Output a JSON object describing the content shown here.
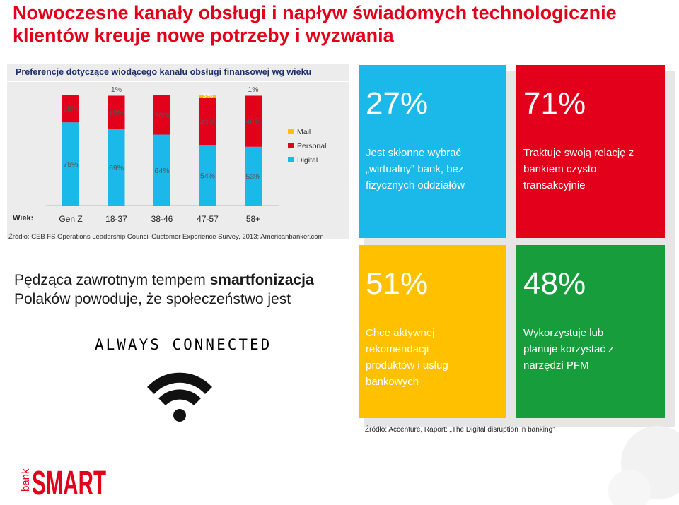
{
  "title": "Nowoczesne kanały obsługi i napływ świadomych technologicznie klientów kreuje nowe potrzeby i wyzwania",
  "chart_heading": "Preferencje dotyczące wiodącego kanału obsługi finansowej wg wieku",
  "chart_data": {
    "type": "bar",
    "stacked": true,
    "categories": [
      "Gen Z",
      "18-37",
      "38-46",
      "47-57",
      "58+"
    ],
    "axis_label": "Wiek:",
    "series": [
      {
        "name": "Digital",
        "color": "#1bb8ea",
        "values": [
          75,
          69,
          64,
          54,
          53
        ],
        "labels": [
          "75%",
          "69%",
          "64%",
          "54%",
          "53%"
        ]
      },
      {
        "name": "Personal",
        "color": "#e2001a",
        "values": [
          25,
          30,
          36,
          43,
          46
        ],
        "labels": [
          "25%",
          "30%",
          "36%",
          "43%",
          "46%"
        ]
      },
      {
        "name": "Mail",
        "color": "#ffc000",
        "values": [
          0,
          1,
          0,
          3,
          1
        ],
        "labels": [
          "",
          "1%",
          "",
          "3%",
          "1%"
        ]
      }
    ],
    "legend_order": [
      "Mail",
      "Personal",
      "Digital"
    ],
    "legend_position": "right",
    "ylim": [
      0,
      100
    ]
  },
  "source1": "Źródło: CEB FS Operations Leadership Council Customer Experience Survey, 2013; Americanbanker.com",
  "tiles": {
    "blue": {
      "pct": "27%",
      "lines": [
        "Jest skłonne wybrać",
        "„wirtualny” bank, bez",
        "fizycznych oddziałów"
      ]
    },
    "red": {
      "pct": "71%",
      "lines": [
        "Traktuje swoją relację z",
        "bankiem czysto",
        "transakcyjnie"
      ]
    },
    "yellow": {
      "pct": "51%",
      "lines": [
        "Chce aktywnej",
        "rekomendacji",
        "produktów i usług",
        "bankowych"
      ]
    },
    "green": {
      "pct": "48%",
      "lines": [
        "Wykorzystuje lub",
        "planuje korzystać z",
        "narzędzi PFM"
      ]
    }
  },
  "promo": {
    "line1_prefix": "Pędząca zawrotnym tempem ",
    "line1_bold": "smartfonizacja",
    "line2": "Polaków powoduje, że społeczeństwo jest",
    "always": "ALWAYS CONNECTED"
  },
  "source2": "Źródło: Accenture, Raport: „The Digital disruption in banking”",
  "logo": {
    "small": "bank",
    "big": "SMART",
    "color": "#e2001a"
  },
  "colors": {
    "accent": "#e2001a",
    "blue": "#1bb8ea",
    "yellow": "#ffc000",
    "green": "#179d3b"
  }
}
